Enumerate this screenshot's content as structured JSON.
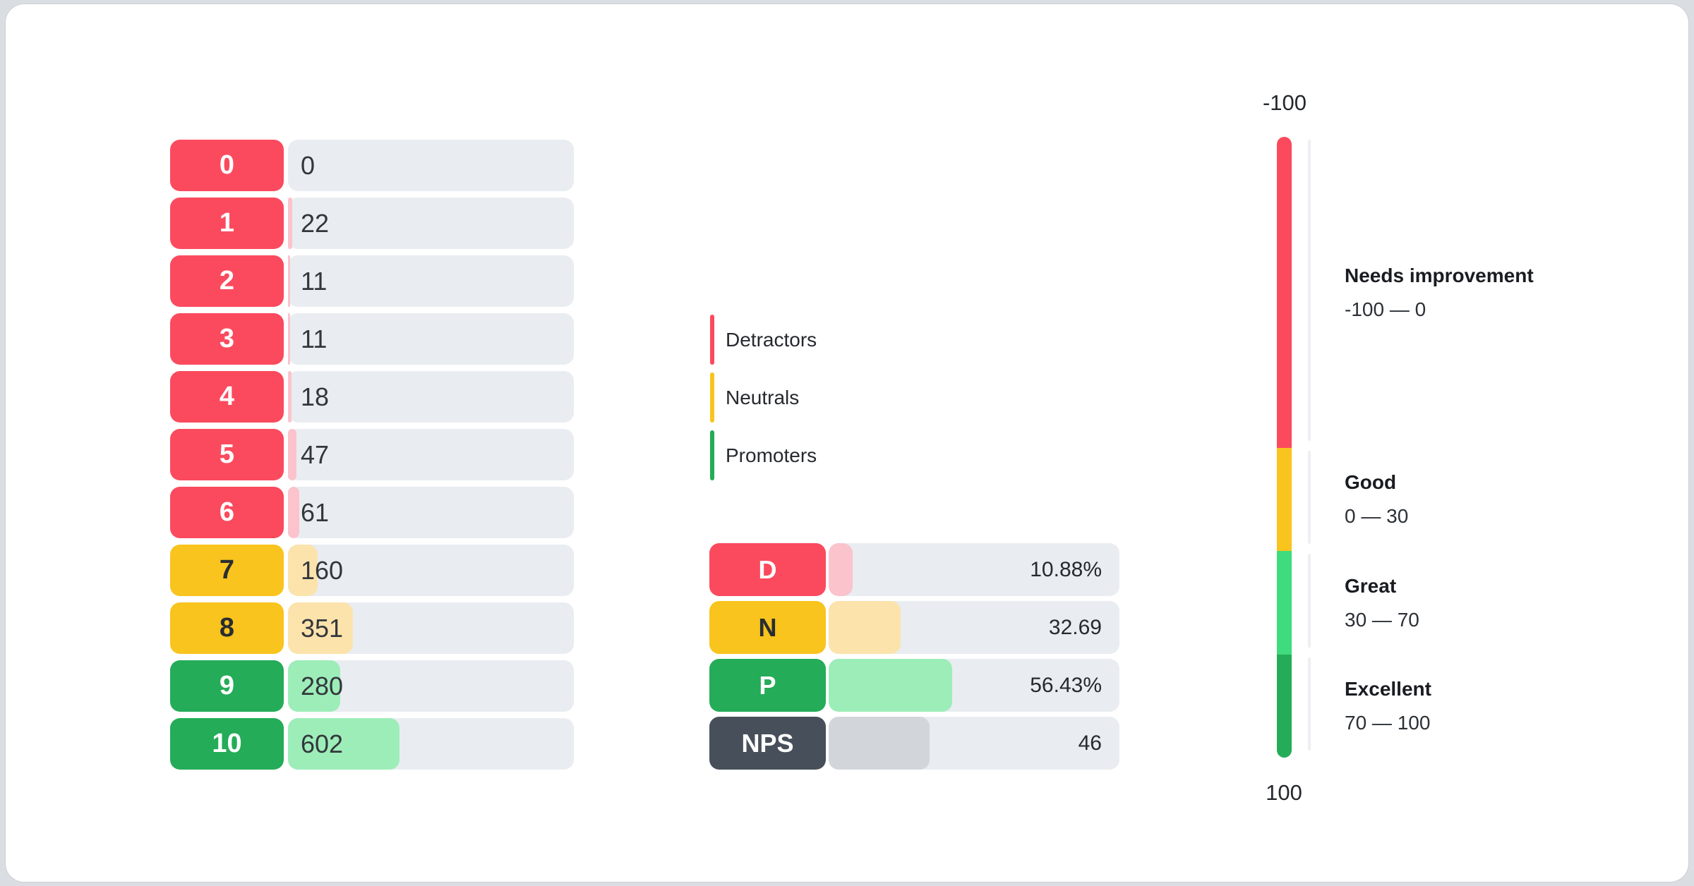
{
  "colors": {
    "detractor": "#FB4A5E",
    "detractor_light": "#FBC3CC",
    "neutral": "#F8C41D",
    "neutral_light": "#FCE3AC",
    "promoter": "#24AC58",
    "promoter_light": "#9DEDB9",
    "nps": "#47505A",
    "nps_light": "#D2D6DB",
    "track": "#E9EDF1",
    "gauge_great": "#3FDB7D",
    "chip_text_light": "#FFFFFF",
    "chip_text_dark": "#2A2D31"
  },
  "chart_data": [
    {
      "name": "score_distribution",
      "type": "bar",
      "orientation": "horizontal",
      "categories": [
        "0",
        "1",
        "2",
        "3",
        "4",
        "5",
        "6",
        "7",
        "8",
        "9",
        "10"
      ],
      "values": [
        0,
        22,
        11,
        11,
        18,
        47,
        61,
        160,
        351,
        280,
        602
      ],
      "groups": [
        "detractor",
        "detractor",
        "detractor",
        "detractor",
        "detractor",
        "detractor",
        "detractor",
        "neutral",
        "neutral",
        "promoter",
        "promoter"
      ]
    },
    {
      "name": "nps_summary",
      "type": "bar",
      "orientation": "horizontal",
      "categories": [
        "D",
        "N",
        "P",
        "NPS"
      ],
      "values": [
        10.88,
        32.69,
        56.43,
        46
      ],
      "value_labels": [
        "10.88%",
        "32.69",
        "56.43%",
        "46"
      ],
      "groups": [
        "detractor",
        "neutral",
        "promoter",
        "nps"
      ]
    },
    {
      "name": "nps_gauge",
      "type": "gauge",
      "axis_min": -100,
      "axis_max": 100,
      "top_label": "-100",
      "bottom_label": "100",
      "zones": [
        {
          "title": "Needs improvement",
          "range": "-100 — 0",
          "from": -100,
          "to": 0,
          "color": "#FB4A5E"
        },
        {
          "title": "Good",
          "range": "0 — 30",
          "from": 0,
          "to": 30,
          "color": "#F8C41D"
        },
        {
          "title": "Great",
          "range": "30 — 70",
          "from": 30,
          "to": 70,
          "color": "#3FDB7D"
        },
        {
          "title": "Excellent",
          "range": "70 — 100",
          "from": 70,
          "to": 100,
          "color": "#24AC58"
        }
      ]
    }
  ],
  "legend": {
    "items": [
      {
        "label": "Detractors",
        "color": "#FB4A5E"
      },
      {
        "label": "Neutrals",
        "color": "#F8C41D"
      },
      {
        "label": "Promoters",
        "color": "#24AC58"
      }
    ]
  }
}
